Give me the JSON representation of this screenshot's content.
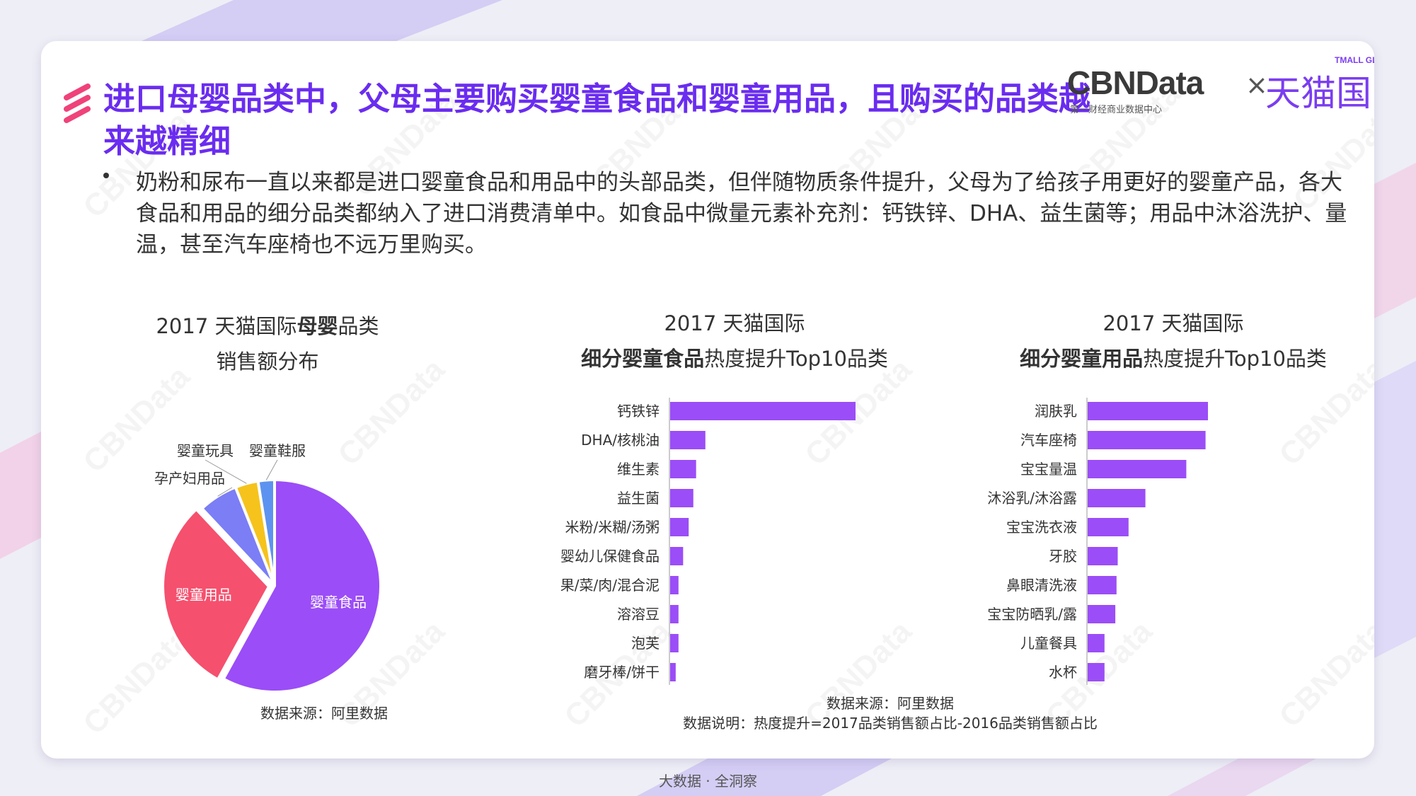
{
  "page": {
    "title": "进口母婴品类中，父母主要购买婴童食品和婴童用品，且购买的品类越来越精细",
    "bullet": "奶粉和尿布一直以来都是进口婴童食品和用品中的头部品类，但伴随物质条件提升，父母为了给孩子用更好的婴童产品，各大食品和用品的细分品类都纳入了进口消费清单中。如食品中微量元素补充剂：钙铁锌、DHA、益生菌等；用品中沐浴洗护、量温，甚至汽车座椅也不远万里购买。",
    "footer": "大数据 · 全洞察",
    "watermark": "CBNData"
  },
  "logo": {
    "cbn": "CBNData",
    "cbn_sub": "第一财经商业数据中心",
    "times": "×",
    "tmall": "天猫国际",
    "tmall_global": "TMALL GLOBAL"
  },
  "charts": {
    "pie": {
      "title_line1_pre": "2017 天猫国际",
      "title_line1_bold": "母婴",
      "title_line1_post": "品类",
      "title_line2": "销售额分布",
      "source": "数据来源：阿里数据"
    },
    "food": {
      "title_line1": "2017 天猫国际",
      "title_line2_bold": "细分婴童食品",
      "title_line2_post": "热度提升Top10品类"
    },
    "goods": {
      "title_line1": "2017 天猫国际",
      "title_line2_bold": "细分婴童用品",
      "title_line2_post": "热度提升Top10品类"
    },
    "bar_source": "数据来源：阿里数据",
    "bar_note": "数据说明：热度提升=2017品类销售额占比-2016品类销售额占比"
  },
  "chart_data": [
    {
      "type": "pie",
      "categories": [
        "婴童食品",
        "婴童用品",
        "孕产妇用品",
        "婴童玩具",
        "婴童鞋服"
      ],
      "values": [
        58,
        30,
        6,
        3.5,
        2.5
      ],
      "colors": [
        "#9b4df7",
        "#f5506e",
        "#7b7ef5",
        "#f5c31c",
        "#5d93f0"
      ]
    },
    {
      "type": "bar",
      "orientation": "horizontal",
      "categories": [
        "钙铁锌",
        "DHA/核桃油",
        "维生素",
        "益生菌",
        "米粉/米糊/汤粥",
        "婴幼儿保健食品",
        "果/菜/肉/混合泥",
        "溶溶豆",
        "泡芙",
        "磨牙棒/饼干"
      ],
      "values": [
        100,
        19,
        14,
        12.5,
        10,
        7,
        4.5,
        4.5,
        4.5,
        3
      ],
      "color": "#9b4df7"
    },
    {
      "type": "bar",
      "orientation": "horizontal",
      "categories": [
        "润肤乳",
        "汽车座椅",
        "宝宝量温",
        "沐浴乳/沐浴露",
        "宝宝洗衣液",
        "牙胶",
        "鼻眼清洗液",
        "宝宝防晒乳/露",
        "儿童餐具",
        "水杯"
      ],
      "values": [
        100,
        98,
        82,
        48,
        34,
        25,
        24,
        23,
        14,
        14
      ],
      "color": "#9b4df7"
    }
  ]
}
